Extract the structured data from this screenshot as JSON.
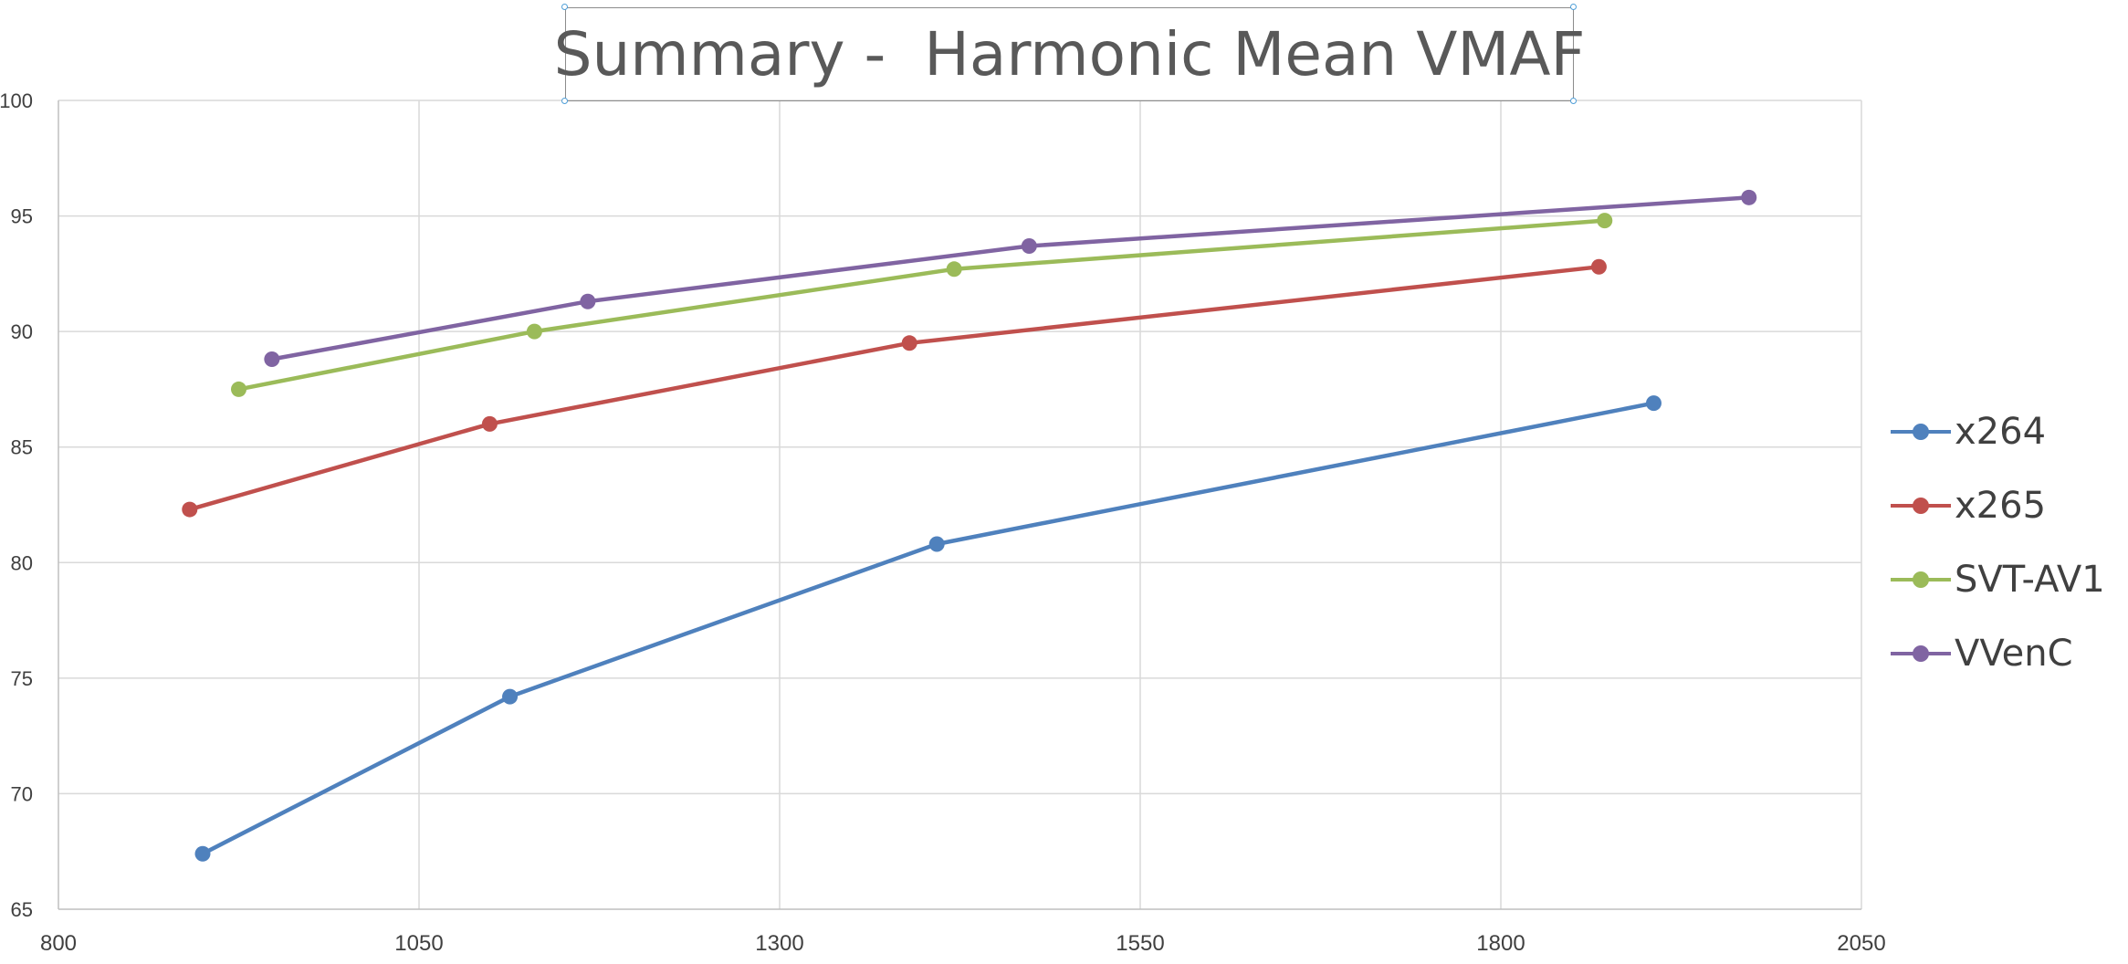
{
  "chart_data": {
    "type": "line",
    "title": "Summary -  Harmonic Mean VMAF",
    "xlabel": "",
    "ylabel": "",
    "xlim": [
      800,
      2050
    ],
    "ylim": [
      65,
      100
    ],
    "xticks": [
      800,
      1050,
      1300,
      1550,
      1800,
      2050
    ],
    "yticks": [
      65,
      70,
      75,
      80,
      85,
      90,
      95,
      100
    ],
    "grid": true,
    "legend_position": "right",
    "series": [
      {
        "name": "x264",
        "color": "#4f81bd",
        "x": [
          900,
          1113,
          1409,
          1906
        ],
        "y": [
          67.4,
          74.2,
          80.8,
          86.9
        ]
      },
      {
        "name": "x265",
        "color": "#c0504d",
        "x": [
          891,
          1099,
          1390,
          1868
        ],
        "y": [
          82.3,
          86.0,
          89.5,
          92.8
        ]
      },
      {
        "name": "SVT-AV1",
        "color": "#9bbb59",
        "x": [
          925,
          1130,
          1421,
          1872
        ],
        "y": [
          87.5,
          90.0,
          92.7,
          94.8
        ]
      },
      {
        "name": "VVenC",
        "color": "#8064a2",
        "x": [
          948,
          1167,
          1473,
          1972
        ],
        "y": [
          88.8,
          91.3,
          93.7,
          95.8
        ]
      }
    ]
  }
}
